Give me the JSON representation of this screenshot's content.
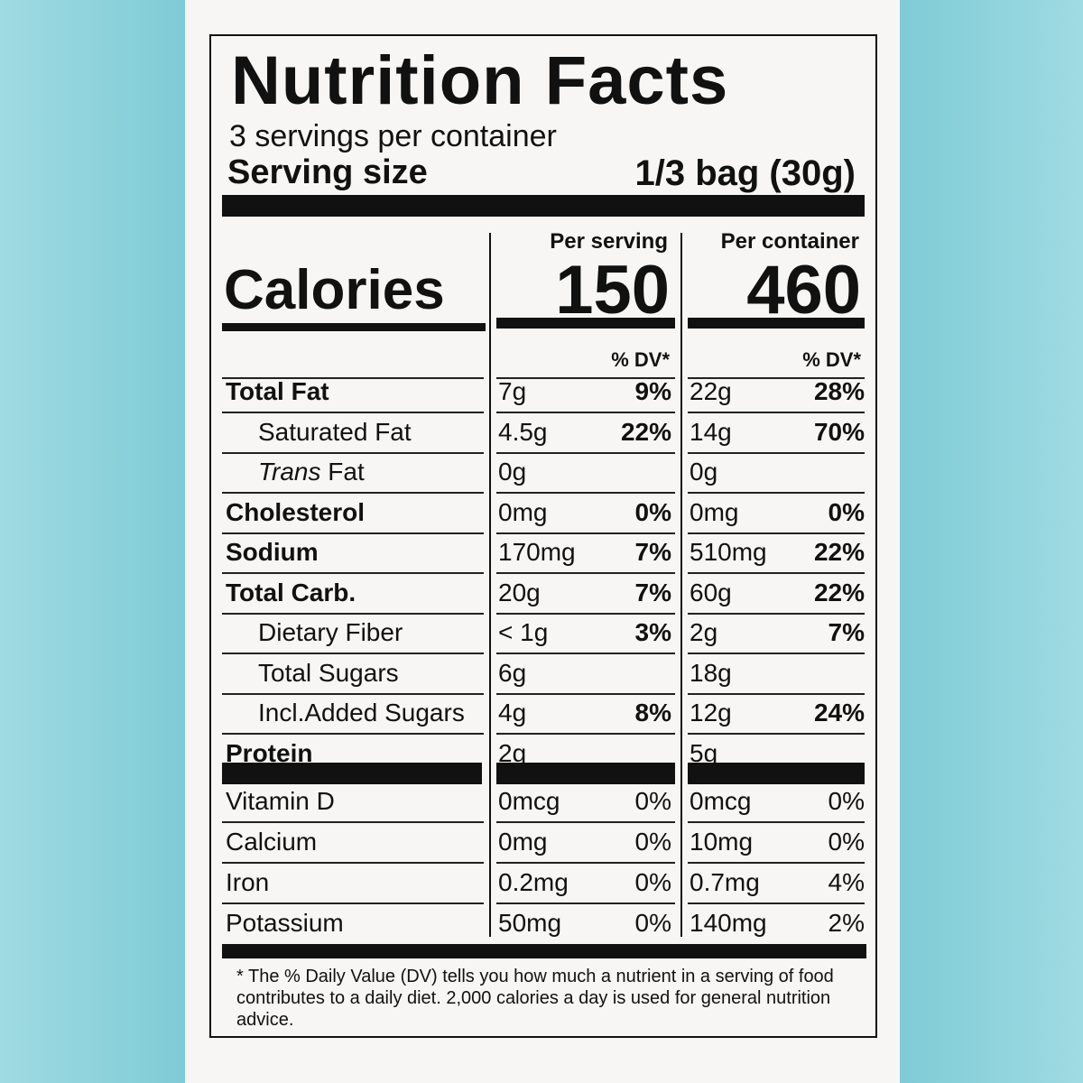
{
  "title": "Nutrition Facts",
  "servings_per_container": "3 servings per container",
  "serving_size_label": "Serving size",
  "serving_size_value": "1/3 bag (30g)",
  "calories_label": "Calories",
  "columns": [
    {
      "header": "Per serving",
      "calories": "150",
      "dv_header": "% DV*"
    },
    {
      "header": "Per container",
      "calories": "460",
      "dv_header": "% DV*"
    }
  ],
  "nutrients": [
    {
      "name": "Total Fat",
      "bold": true,
      "indent": false,
      "serving": "7g",
      "serving_dv": "9%",
      "container": "22g",
      "container_dv": "28%"
    },
    {
      "name": "Saturated Fat",
      "bold": false,
      "indent": true,
      "serving": "4.5g",
      "serving_dv": "22%",
      "container": "14g",
      "container_dv": "70%"
    },
    {
      "name": "Trans Fat",
      "name_italic_part": "Trans",
      "name_rest": " Fat",
      "bold": false,
      "indent": true,
      "serving": "0g",
      "serving_dv": "",
      "container": "0g",
      "container_dv": ""
    },
    {
      "name": "Cholesterol",
      "bold": true,
      "indent": false,
      "serving": "0mg",
      "serving_dv": "0%",
      "container": "0mg",
      "container_dv": "0%"
    },
    {
      "name": "Sodium",
      "bold": true,
      "indent": false,
      "serving": "170mg",
      "serving_dv": "7%",
      "container": "510mg",
      "container_dv": "22%"
    },
    {
      "name": "Total Carb.",
      "bold": true,
      "indent": false,
      "serving": "20g",
      "serving_dv": "7%",
      "container": "60g",
      "container_dv": "22%"
    },
    {
      "name": "Dietary Fiber",
      "bold": false,
      "indent": true,
      "serving": "< 1g",
      "serving_dv": "3%",
      "container": "2g",
      "container_dv": "7%"
    },
    {
      "name": "Total Sugars",
      "bold": false,
      "indent": true,
      "serving": "6g",
      "serving_dv": "",
      "container": "18g",
      "container_dv": ""
    },
    {
      "name": "Incl.Added Sugars",
      "bold": false,
      "indent": true,
      "serving": "4g",
      "serving_dv": "8%",
      "container": "12g",
      "container_dv": "24%"
    },
    {
      "name": "Protein",
      "bold": true,
      "indent": false,
      "serving": "2g",
      "serving_dv": "",
      "container": "5g",
      "container_dv": ""
    }
  ],
  "vitamins": [
    {
      "name": "Vitamin D",
      "serving": "0mcg",
      "serving_dv": "0%",
      "container": "0mcg",
      "container_dv": "0%"
    },
    {
      "name": "Calcium",
      "serving": "0mg",
      "serving_dv": "0%",
      "container": "10mg",
      "container_dv": "0%"
    },
    {
      "name": "Iron",
      "serving": "0.2mg",
      "serving_dv": "0%",
      "container": "0.7mg",
      "container_dv": "4%"
    },
    {
      "name": "Potassium",
      "serving": "50mg",
      "serving_dv": "0%",
      "container": "140mg",
      "container_dv": "2%"
    }
  ],
  "footnote": "* The % Daily Value (DV) tells you how much a nutrient in a serving of food contributes to a daily diet. 2,000 calories a day is used for general nutrition advice.",
  "colors": {
    "background": "#86d0da",
    "paper": "#f7f6f4",
    "ink": "#111111"
  }
}
